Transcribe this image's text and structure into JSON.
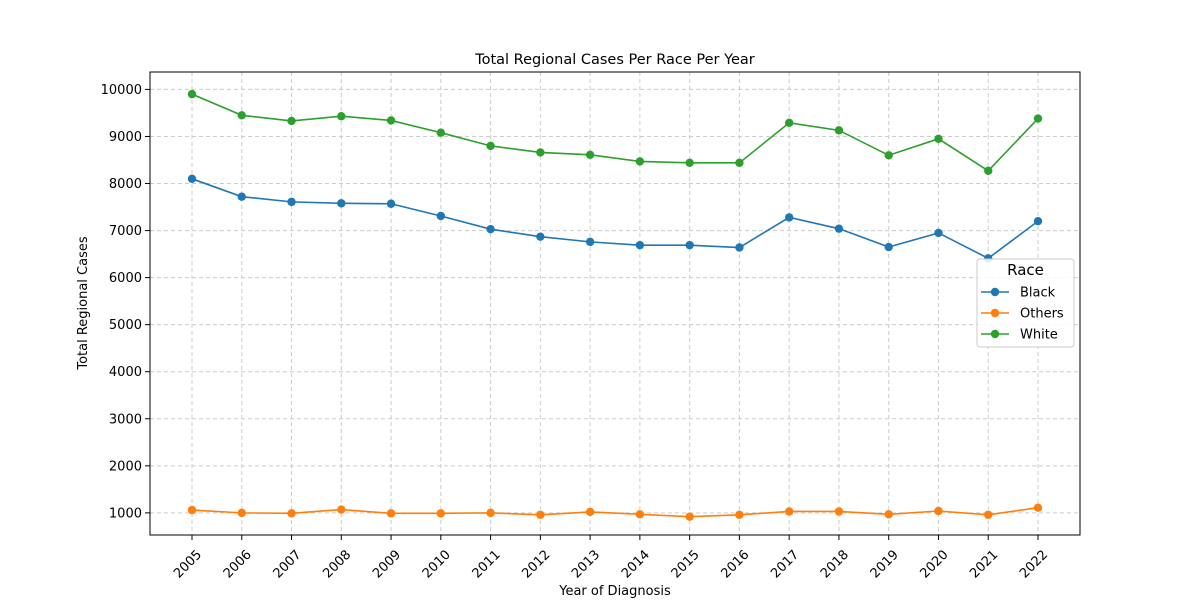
{
  "chart_data": {
    "type": "line",
    "title": "Total Regional Cases Per Race Per Year",
    "xlabel": "Year of Diagnosis",
    "ylabel": "Total Regional Cases",
    "x": [
      "2005",
      "2006",
      "2007",
      "2008",
      "2009",
      "2010",
      "2011",
      "2012",
      "2013",
      "2014",
      "2015",
      "2016",
      "2017",
      "2018",
      "2019",
      "2020",
      "2021",
      "2022"
    ],
    "yticks": [
      "1000",
      "2000",
      "3000",
      "4000",
      "5000",
      "6000",
      "7000",
      "8000",
      "9000",
      "10000"
    ],
    "ylim": [
      530,
      10370
    ],
    "grid": true,
    "legend": {
      "title": "Race",
      "placement": "center-right"
    },
    "series": [
      {
        "name": "Black",
        "color": "#1f77b4",
        "values": [
          8100,
          7720,
          7610,
          7580,
          7570,
          7310,
          7030,
          6870,
          6760,
          6690,
          6690,
          6640,
          7280,
          7040,
          6650,
          6950,
          6410,
          7200
        ]
      },
      {
        "name": "Others",
        "color": "#ff7f0e",
        "values": [
          1060,
          1000,
          990,
          1070,
          990,
          990,
          1000,
          960,
          1020,
          970,
          920,
          960,
          1030,
          1030,
          970,
          1040,
          960,
          1110
        ]
      },
      {
        "name": "White",
        "color": "#2ca02c",
        "values": [
          9900,
          9450,
          9330,
          9430,
          9340,
          9080,
          8800,
          8660,
          8610,
          8470,
          8440,
          8440,
          9290,
          9130,
          8600,
          8950,
          8270,
          9380
        ]
      }
    ]
  }
}
